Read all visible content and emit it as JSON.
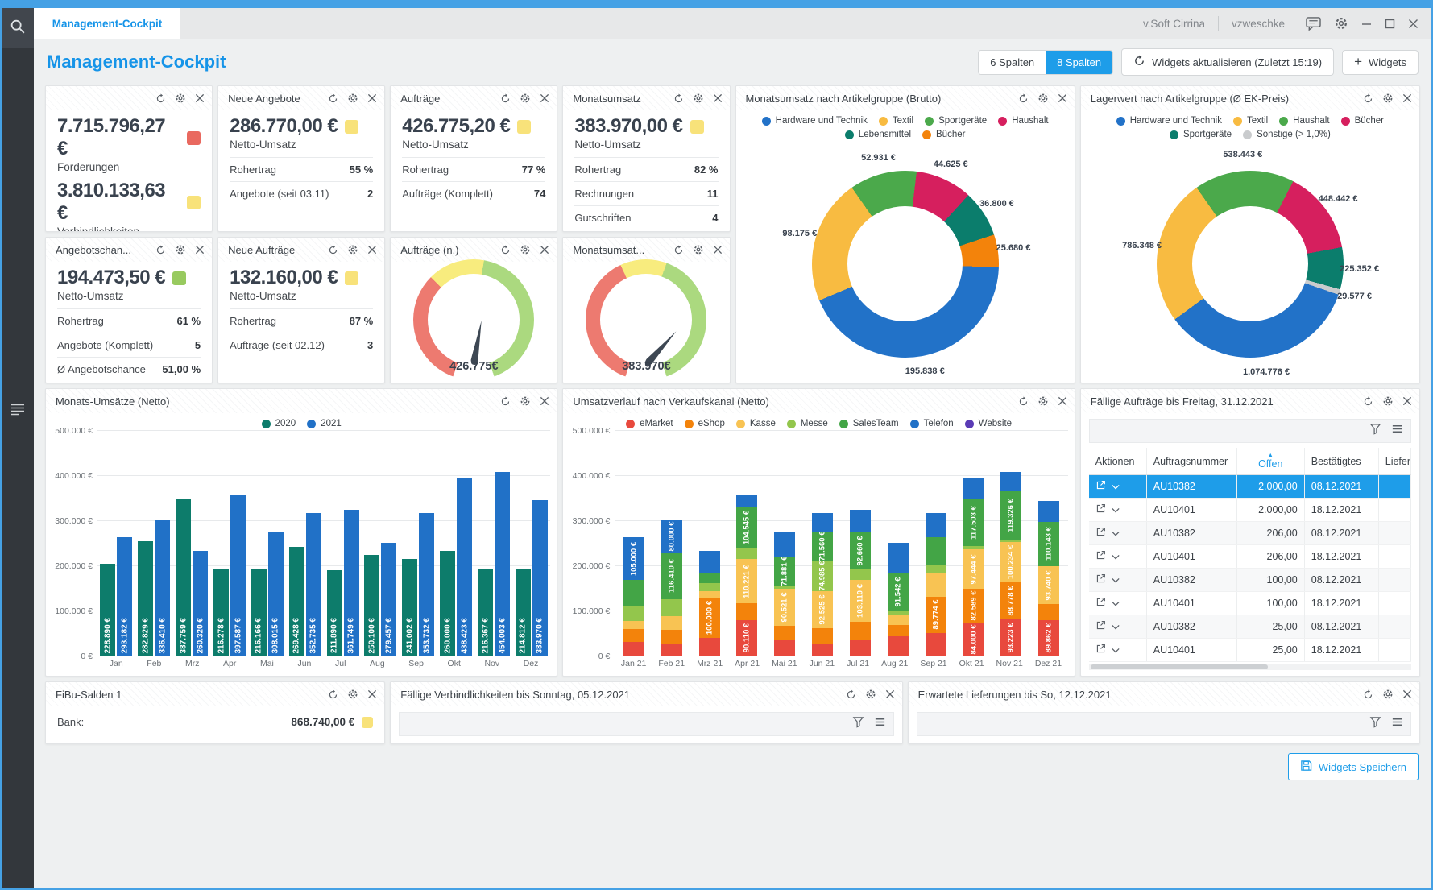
{
  "window": {
    "tab_title": "Management-Cockpit",
    "account": "v.Soft Cirrina",
    "user": "vzweschke"
  },
  "page": {
    "title": "Management-Cockpit",
    "columns_6": "6 Spalten",
    "columns_8": "8 Spalten",
    "refresh_widgets": "Widgets aktualisieren (Zuletzt 15:19)",
    "add_widgets": "Widgets",
    "save_widgets": "Widgets Speichern"
  },
  "colors": {
    "accent": "#1e9de9",
    "badge_red": "#e9695f",
    "badge_yellow": "#f8e27a",
    "badge_green": "#98ca5f"
  },
  "kpi_forderungen": {
    "value1": "7.715.796,27 €",
    "label1": "Forderungen",
    "value2": "3.810.133,63 €",
    "label2": "Verbindlichkeiten"
  },
  "kpi_neue_angebote": {
    "title": "Neue Angebote",
    "value": "286.770,00 €",
    "label": "Netto-Umsatz",
    "rows": [
      {
        "k": "Rohertrag",
        "v": "55 %"
      },
      {
        "k": "Angebote (seit 03.11)",
        "v": "2"
      }
    ]
  },
  "kpi_auftraege": {
    "title": "Aufträge",
    "value": "426.775,20 €",
    "label": "Netto-Umsatz",
    "rows": [
      {
        "k": "Rohertrag",
        "v": "77 %"
      },
      {
        "k": "Aufträge (Komplett)",
        "v": "74"
      }
    ]
  },
  "kpi_monatsumsatz": {
    "title": "Monatsumsatz",
    "value": "383.970,00 €",
    "label": "Netto-Umsatz",
    "rows": [
      {
        "k": "Rohertrag",
        "v": "82 %"
      },
      {
        "k": "Rechnungen",
        "v": "11"
      },
      {
        "k": "Gutschriften",
        "v": "4"
      }
    ]
  },
  "kpi_angebotschance": {
    "title": "Angebotschan...",
    "value": "194.473,50 €",
    "label": "Netto-Umsatz",
    "rows": [
      {
        "k": "Rohertrag",
        "v": "61 %"
      },
      {
        "k": "Angebote (Komplett)",
        "v": "5"
      },
      {
        "k": "Ø Angebotschance",
        "v": "51,00 %"
      }
    ]
  },
  "kpi_neue_auftraege": {
    "title": "Neue Aufträge",
    "value": "132.160,00 €",
    "label": "Netto-Umsatz",
    "rows": [
      {
        "k": "Rohertrag",
        "v": "87 %"
      },
      {
        "k": "Aufträge (seit 02.12)",
        "v": "3"
      }
    ]
  },
  "gauge_auftraege": {
    "title": "Aufträge (n.)",
    "value": "426.775€",
    "needle_deg": 10,
    "arc": [
      {
        "color": "#ed7a70",
        "sweep": 115
      },
      {
        "color": "#f8ec7e",
        "sweep": 55
      },
      {
        "color": "#abd97f",
        "sweep": 150
      }
    ]
  },
  "gauge_monatsumsatz": {
    "title": "Monatsumsat...",
    "value": "383.970€",
    "needle_deg": 42,
    "arc": [
      {
        "color": "#ed7a70",
        "sweep": 135
      },
      {
        "color": "#f8ec7e",
        "sweep": 45
      },
      {
        "color": "#abd97f",
        "sweep": 140
      }
    ]
  },
  "chart_data": [
    {
      "id": "donut_monatsumsatz",
      "type": "pie",
      "title": "Monatsumsatz nach Artikelgruppe (Brutto)",
      "start_angle": -35,
      "legend": [
        {
          "label": "Hardware und Technik",
          "color": "#2272c8"
        },
        {
          "label": "Textil",
          "color": "#f8bb41"
        },
        {
          "label": "Sportgeräte",
          "color": "#4ba94b"
        },
        {
          "label": "Haushalt",
          "color": "#d61f5e"
        },
        {
          "label": "Lebensmittel",
          "color": "#0b7d6c"
        },
        {
          "label": "Bücher",
          "color": "#f3830b"
        }
      ],
      "slices": [
        {
          "label": "Sportgeräte",
          "value": 52931,
          "display": "52.931 €",
          "color": "#4ba94b"
        },
        {
          "label": "Haushalt",
          "value": 44625,
          "display": "44.625 €",
          "color": "#d61f5e"
        },
        {
          "label": "Lebensmittel",
          "value": 36800,
          "display": "36.800 €",
          "color": "#0b7d6c"
        },
        {
          "label": "Bücher",
          "value": 25680,
          "display": "25.680 €",
          "color": "#f3830b"
        },
        {
          "label": "Hardware und Technik",
          "value": 195838,
          "display": "195.838 €",
          "color": "#2272c8"
        },
        {
          "label": "Textil",
          "value": 98175,
          "display": "98.175 €",
          "color": "#f8bb41"
        }
      ]
    },
    {
      "id": "donut_lagerwert",
      "type": "pie",
      "title": "Lagerwert nach Artikelgruppe (Ø EK-Preis)",
      "start_angle": -35,
      "legend": [
        {
          "label": "Hardware und Technik",
          "color": "#2272c8"
        },
        {
          "label": "Textil",
          "color": "#f8bb41"
        },
        {
          "label": "Haushalt",
          "color": "#4ba94b"
        },
        {
          "label": "Bücher",
          "color": "#d61f5e"
        },
        {
          "label": "Sportgeräte",
          "color": "#0b7d6c"
        },
        {
          "label": "Sonstige (> 1,0%)",
          "color": "#c9cbcd"
        }
      ],
      "slices": [
        {
          "label": "Haushalt",
          "value": 538443,
          "display": "538.443 €",
          "color": "#4ba94b"
        },
        {
          "label": "Bücher",
          "value": 448442,
          "display": "448.442 €",
          "color": "#d61f5e"
        },
        {
          "label": "Sportgeräte",
          "value": 225352,
          "display": "225.352 €",
          "color": "#0b7d6c"
        },
        {
          "label": "Sonstige (> 1,0%)",
          "value": 29577,
          "display": "29.577 €",
          "color": "#c9cbcd"
        },
        {
          "label": "Hardware und Technik",
          "value": 1074776,
          "display": "1.074.776 €",
          "color": "#2272c8"
        },
        {
          "label": "Textil",
          "value": 786348,
          "display": "786.348 €",
          "color": "#f8bb41"
        }
      ]
    },
    {
      "id": "monats_umsaetze",
      "type": "bar",
      "title": "Monats-Umsätze (Netto)",
      "categories": [
        "Jan",
        "Feb",
        "Mrz",
        "Apr",
        "Mai",
        "Jun",
        "Jul",
        "Aug",
        "Sep",
        "Okt",
        "Nov",
        "Dez"
      ],
      "series": [
        {
          "name": "2020",
          "color": "#0d7c6b",
          "values": [
            228890,
            282829,
            387759,
            216278,
            216166,
            269428,
            211890,
            250100,
            241002,
            260000,
            216367,
            214812
          ]
        },
        {
          "name": "2021",
          "color": "#2171c7",
          "values": [
            293182,
            336410,
            260320,
            397587,
            308015,
            352735,
            361749,
            279457,
            353732,
            438423,
            454003,
            383970
          ]
        }
      ],
      "ylim": [
        0,
        500000
      ],
      "yticks": [
        "0 €",
        "100.000 €",
        "200.000 €",
        "300.000 €",
        "400.000 €",
        "500.000 €"
      ]
    },
    {
      "id": "verkaufskanal",
      "type": "bar",
      "subtype": "stacked",
      "title": "Umsatzverlauf nach Verkaufskanal (Netto)",
      "categories": [
        "Jan 21",
        "Feb 21",
        "Mrz 21",
        "Apr 21",
        "Mai 21",
        "Jun 21",
        "Jul 21",
        "Aug 21",
        "Sep 21",
        "Okt 21",
        "Nov 21",
        "Dez 21"
      ],
      "channels": [
        {
          "name": "eMarket",
          "color": "#e8493d"
        },
        {
          "name": "eShop",
          "color": "#f3830b"
        },
        {
          "name": "Kasse",
          "color": "#f8c353"
        },
        {
          "name": "Messe",
          "color": "#93c64c"
        },
        {
          "name": "SalesTeam",
          "color": "#43a546"
        },
        {
          "name": "Telefon",
          "color": "#2171c7"
        },
        {
          "name": "Website",
          "color": "#5a3bb5"
        }
      ],
      "months": [
        {
          "values": [
            35000,
            32000,
            20000,
            36182,
            65000,
            105000,
            0
          ],
          "labeled": [
            false,
            false,
            false,
            false,
            false,
            true,
            false
          ]
        },
        {
          "values": [
            30000,
            35000,
            35000,
            40000,
            116410,
            80000,
            0
          ],
          "labeled": [
            false,
            false,
            false,
            false,
            true,
            true,
            false
          ]
        },
        {
          "values": [
            45320,
            100000,
            15000,
            20000,
            25000,
            55000,
            0
          ],
          "labeled": [
            false,
            true,
            false,
            false,
            false,
            false,
            false
          ]
        },
        {
          "values": [
            90110,
            40000,
            110221,
            24711,
            104545,
            28000,
            0
          ],
          "labeled": [
            true,
            false,
            true,
            false,
            true,
            false,
            false
          ]
        },
        {
          "values": [
            40000,
            35613,
            90521,
            8000,
            71881,
            62000,
            0
          ],
          "labeled": [
            false,
            false,
            true,
            false,
            true,
            false,
            false
          ]
        },
        {
          "values": [
            30000,
            38665,
            92525,
            74985,
            71560,
            45000,
            0
          ],
          "labeled": [
            false,
            false,
            true,
            true,
            true,
            false,
            false
          ]
        },
        {
          "values": [
            40000,
            45979,
            103110,
            25000,
            92660,
            55000,
            0
          ],
          "labeled": [
            false,
            false,
            true,
            false,
            true,
            false,
            false
          ]
        },
        {
          "values": [
            50000,
            28000,
            25915,
            10000,
            91542,
            74000,
            0
          ],
          "labeled": [
            false,
            false,
            false,
            false,
            true,
            false,
            false
          ]
        },
        {
          "values": [
            58000,
            89774,
            55958,
            20000,
            70000,
            60000,
            0
          ],
          "labeled": [
            false,
            true,
            false,
            false,
            false,
            false,
            false
          ]
        },
        {
          "values": [
            84000,
            82589,
            97444,
            6887,
            117503,
            50000,
            0
          ],
          "labeled": [
            true,
            true,
            true,
            false,
            true,
            false,
            false
          ]
        },
        {
          "values": [
            93223,
            88778,
            100234,
            4442,
            119326,
            48000,
            0
          ],
          "labeled": [
            true,
            true,
            true,
            false,
            true,
            false,
            false
          ]
        },
        {
          "values": [
            89862,
            38225,
            93740,
            0,
            110143,
            52000,
            0
          ],
          "labeled": [
            true,
            false,
            true,
            false,
            true,
            false,
            false
          ]
        }
      ],
      "ylim": [
        0,
        500000
      ],
      "yticks": [
        "0 €",
        "100.000 €",
        "200.000 €",
        "300.000 €",
        "400.000 €",
        "500.000 €"
      ]
    }
  ],
  "table_auftraege": {
    "title": "Fällige Aufträge bis Freitag, 31.12.2021",
    "columns": [
      "Aktionen",
      "Auftragsnummer",
      "Offen",
      "Bestätigtes",
      "Lieferdat"
    ],
    "sorted_column": "Offen",
    "rows": [
      {
        "nr": "AU10382",
        "offen": "2.000,00",
        "datum": "08.12.2021",
        "selected": true
      },
      {
        "nr": "AU10401",
        "offen": "2.000,00",
        "datum": "18.12.2021",
        "selected": false
      },
      {
        "nr": "AU10382",
        "offen": "206,00",
        "datum": "08.12.2021",
        "selected": false
      },
      {
        "nr": "AU10401",
        "offen": "206,00",
        "datum": "18.12.2021",
        "selected": false
      },
      {
        "nr": "AU10382",
        "offen": "100,00",
        "datum": "08.12.2021",
        "selected": false
      },
      {
        "nr": "AU10401",
        "offen": "100,00",
        "datum": "18.12.2021",
        "selected": false
      },
      {
        "nr": "AU10382",
        "offen": "25,00",
        "datum": "08.12.2021",
        "selected": false
      },
      {
        "nr": "AU10401",
        "offen": "25,00",
        "datum": "18.12.2021",
        "selected": false
      }
    ]
  },
  "fibu": {
    "title": "FiBu-Salden 1",
    "row_label": "Bank:",
    "row_value": "868.740,00 €"
  },
  "verbindlichkeiten": {
    "title": "Fällige Verbindlichkeiten bis Sonntag, 05.12.2021"
  },
  "lieferungen": {
    "title": "Erwartete Lieferungen bis So, 12.12.2021"
  }
}
